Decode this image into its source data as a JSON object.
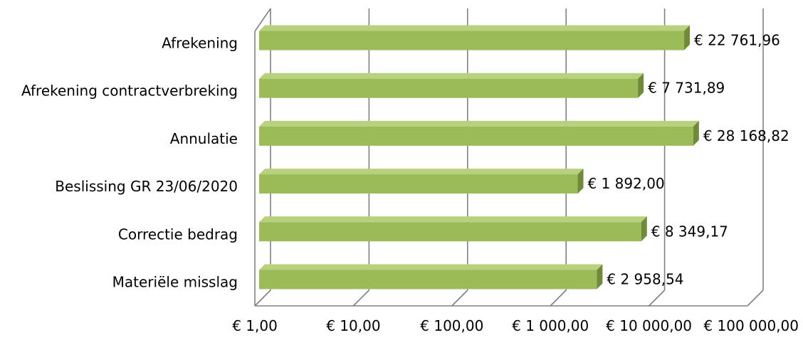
{
  "chart_data": {
    "type": "bar",
    "orientation": "horizontal",
    "style": "3d",
    "x_scale": "log10",
    "xlim": [
      1,
      100000
    ],
    "categories": [
      "Afrekening",
      "Afrekening contractverbreking",
      "Annulatie",
      "Beslissing GR 23/06/2020",
      "Correctie bedrag",
      "Materiële misslag"
    ],
    "values": [
      22761.96,
      7731.89,
      28168.82,
      1892.0,
      8349.17,
      2958.54
    ],
    "data_labels": [
      "€ 22 761,96",
      "€ 7 731,89",
      "€ 28 168,82",
      "€ 1 892,00",
      "€ 8 349,17",
      "€ 2 958,54"
    ],
    "x_ticks": [
      1,
      10,
      100,
      1000,
      10000,
      100000
    ],
    "x_tick_labels": [
      "€  1,00",
      "€  10,00",
      "€  100,00",
      "€ 1 000,00",
      "€ 10 000,00",
      "€ 100 000,00"
    ],
    "title": "",
    "xlabel": "",
    "ylabel": "",
    "grid": true,
    "legend": "none"
  },
  "colors": {
    "bar_front": "#9bbb59",
    "bar_top": "#b8d17e",
    "bar_side": "#6f8a38",
    "grid": "#808080",
    "text": "#000000"
  }
}
